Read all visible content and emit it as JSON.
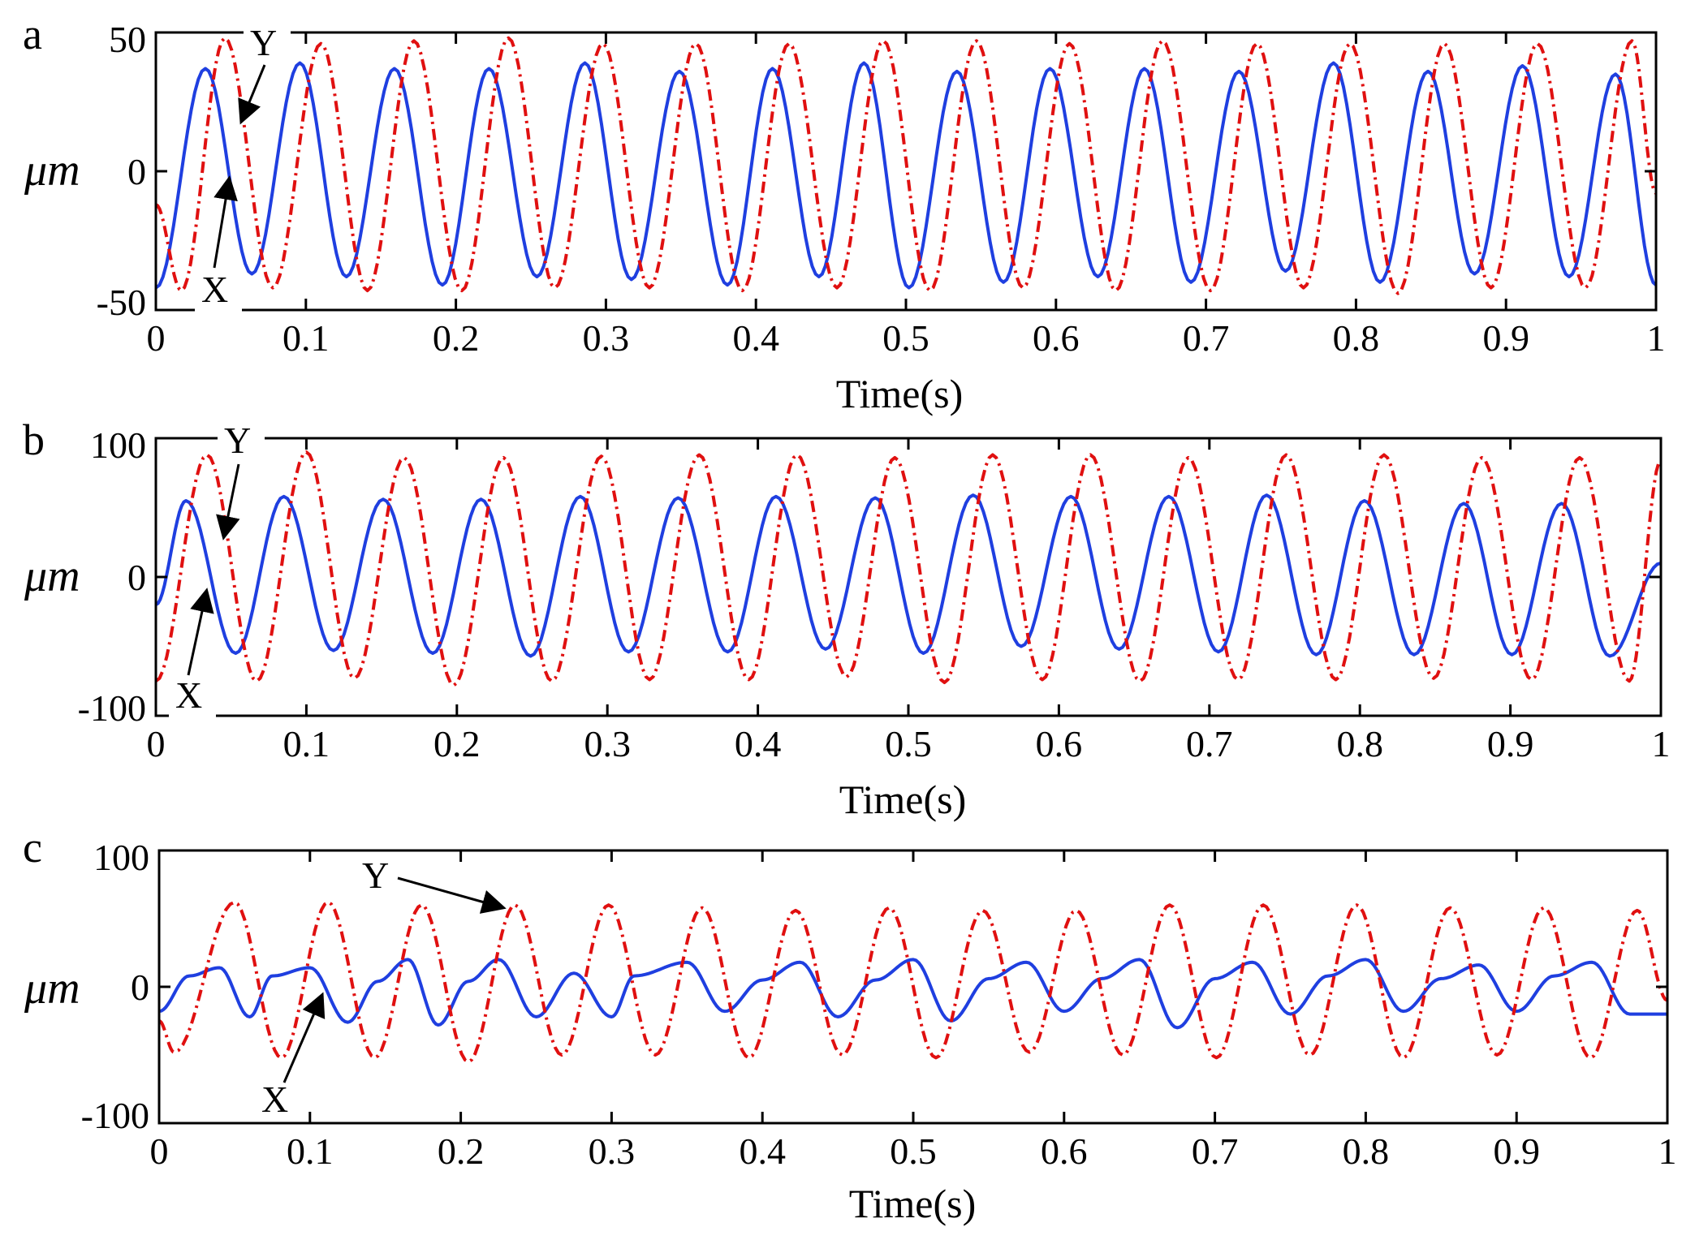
{
  "figure": {
    "panels": [
      "a",
      "b",
      "c"
    ]
  },
  "colors": {
    "x_series": "#1f3fe0",
    "y_series": "#e01010",
    "axes": "#000000"
  },
  "chart_data": [
    {
      "type": "line",
      "panel_label": "a",
      "title": "",
      "xlabel": "Time(s)",
      "ylabel": "μm",
      "xlim": [
        0,
        1
      ],
      "ylim": [
        -50,
        50
      ],
      "xticks": [
        0,
        0.1,
        0.2,
        0.3,
        0.4,
        0.5,
        0.6,
        0.7,
        0.8,
        0.9,
        1
      ],
      "xtick_labels": [
        "0",
        "0.1",
        "0.2",
        "0.3",
        "0.4",
        "0.5",
        "0.6",
        "0.7",
        "0.8",
        "0.9",
        "1"
      ],
      "yticks": [
        -50,
        0,
        50
      ],
      "ytick_labels": [
        "-50",
        "0",
        "50"
      ],
      "grid": false,
      "series": [
        {
          "name": "X",
          "style": "solid",
          "color": "#1f3fe0",
          "x": [
            0,
            0.033,
            0.064,
            0.096,
            0.127,
            0.159,
            0.191,
            0.222,
            0.254,
            0.286,
            0.317,
            0.349,
            0.381,
            0.411,
            0.442,
            0.472,
            0.502,
            0.534,
            0.565,
            0.596,
            0.628,
            0.659,
            0.69,
            0.722,
            0.753,
            0.785,
            0.816,
            0.848,
            0.879,
            0.911,
            0.942,
            0.973,
            1
          ],
          "values": [
            -42,
            37,
            -37,
            39,
            -38,
            37,
            -41,
            37,
            -38,
            39,
            -39,
            36,
            -41,
            37,
            -38,
            39,
            -42,
            36,
            -40,
            37,
            -38,
            37,
            -40,
            36,
            -36,
            39,
            -40,
            36,
            -37,
            38,
            -38,
            35,
            -41
          ]
        },
        {
          "name": "Y",
          "style": "dash-dot",
          "color": "#e01010",
          "x": [
            0,
            0.017,
            0.046,
            0.078,
            0.11,
            0.141,
            0.172,
            0.204,
            0.235,
            0.266,
            0.298,
            0.329,
            0.36,
            0.391,
            0.422,
            0.454,
            0.485,
            0.516,
            0.547,
            0.578,
            0.609,
            0.64,
            0.671,
            0.703,
            0.734,
            0.765,
            0.796,
            0.828,
            0.859,
            0.89,
            0.921,
            0.953,
            0.984,
            1
          ],
          "values": [
            -12,
            -43,
            48,
            -42,
            46,
            -43,
            47,
            -43,
            48,
            -42,
            46,
            -42,
            46,
            -43,
            46,
            -42,
            47,
            -43,
            47,
            -42,
            46,
            -43,
            47,
            -43,
            46,
            -42,
            46,
            -44,
            46,
            -42,
            46,
            -42,
            47,
            -8
          ]
        }
      ],
      "annotations": [
        {
          "text": "Y",
          "points_to": "Y curve near t=0.06"
        },
        {
          "text": "X",
          "points_to": "X curve near t=0.05"
        }
      ]
    },
    {
      "type": "line",
      "panel_label": "b",
      "title": "",
      "xlabel": "Time(s)",
      "ylabel": "μm",
      "xlim": [
        0,
        1
      ],
      "ylim": [
        -100,
        100
      ],
      "xticks": [
        0,
        0.1,
        0.2,
        0.3,
        0.4,
        0.5,
        0.6,
        0.7,
        0.8,
        0.9,
        1
      ],
      "xtick_labels": [
        "0",
        "0.1",
        "0.2",
        "0.3",
        "0.4",
        "0.5",
        "0.6",
        "0.7",
        "0.8",
        "0.9",
        "1"
      ],
      "yticks": [
        -100,
        0,
        100
      ],
      "ytick_labels": [
        "-100",
        "0",
        "100"
      ],
      "grid": false,
      "series": [
        {
          "name": "X",
          "style": "solid",
          "color": "#1f3fe0",
          "x": [
            0,
            0.02,
            0.053,
            0.085,
            0.118,
            0.151,
            0.184,
            0.216,
            0.249,
            0.282,
            0.314,
            0.347,
            0.38,
            0.412,
            0.445,
            0.478,
            0.51,
            0.543,
            0.575,
            0.608,
            0.64,
            0.673,
            0.706,
            0.738,
            0.771,
            0.803,
            0.836,
            0.869,
            0.901,
            0.934,
            0.966,
            1
          ],
          "values": [
            -20,
            55,
            -55,
            58,
            -53,
            56,
            -55,
            56,
            -57,
            58,
            -54,
            57,
            -54,
            58,
            -52,
            57,
            -55,
            59,
            -50,
            58,
            -52,
            58,
            -54,
            59,
            -56,
            55,
            -56,
            53,
            -56,
            53,
            -57,
            10
          ]
        },
        {
          "name": "Y",
          "style": "dash-dot",
          "color": "#e01010",
          "x": [
            0,
            0.034,
            0.067,
            0.1,
            0.132,
            0.165,
            0.198,
            0.231,
            0.263,
            0.296,
            0.328,
            0.361,
            0.394,
            0.426,
            0.459,
            0.491,
            0.524,
            0.556,
            0.589,
            0.621,
            0.654,
            0.686,
            0.719,
            0.751,
            0.784,
            0.816,
            0.849,
            0.881,
            0.914,
            0.946,
            0.979,
            1
          ],
          "values": [
            -75,
            88,
            -75,
            90,
            -73,
            86,
            -78,
            86,
            -75,
            87,
            -74,
            88,
            -74,
            88,
            -72,
            86,
            -76,
            88,
            -74,
            88,
            -75,
            86,
            -74,
            88,
            -74,
            88,
            -73,
            86,
            -74,
            86,
            -75,
            84
          ]
        }
      ],
      "annotations": [
        {
          "text": "Y",
          "points_to": "Y curve near t=0.045"
        },
        {
          "text": "X",
          "points_to": "X curve near t=0.035"
        }
      ]
    },
    {
      "type": "line",
      "panel_label": "c",
      "title": "",
      "xlabel": "Time(s)",
      "ylabel": "μm",
      "xlim": [
        0,
        1
      ],
      "ylim": [
        -100,
        100
      ],
      "xticks": [
        0,
        0.1,
        0.2,
        0.3,
        0.4,
        0.5,
        0.6,
        0.7,
        0.8,
        0.9,
        1
      ],
      "xtick_labels": [
        "0",
        "0.1",
        "0.2",
        "0.3",
        "0.4",
        "0.5",
        "0.6",
        "0.7",
        "0.8",
        "0.9",
        "1"
      ],
      "yticks": [
        -100,
        0,
        100
      ],
      "ytick_labels": [
        "-100",
        "0",
        "100"
      ],
      "grid": false,
      "series": [
        {
          "name": "X",
          "style": "solid",
          "color": "#1f3fe0",
          "x": [
            0,
            0.02,
            0.04,
            0.06,
            0.075,
            0.1,
            0.125,
            0.145,
            0.165,
            0.185,
            0.205,
            0.225,
            0.25,
            0.275,
            0.3,
            0.315,
            0.35,
            0.375,
            0.4,
            0.425,
            0.45,
            0.475,
            0.5,
            0.525,
            0.55,
            0.575,
            0.6,
            0.625,
            0.65,
            0.675,
            0.7,
            0.725,
            0.75,
            0.775,
            0.8,
            0.825,
            0.85,
            0.875,
            0.9,
            0.925,
            0.95,
            0.975,
            1
          ],
          "values": [
            -18,
            8,
            14,
            -22,
            8,
            14,
            -26,
            4,
            20,
            -28,
            4,
            20,
            -22,
            10,
            -22,
            8,
            18,
            -18,
            5,
            18,
            -22,
            5,
            20,
            -25,
            6,
            18,
            -18,
            6,
            20,
            -30,
            6,
            18,
            -20,
            8,
            20,
            -18,
            6,
            16,
            -18,
            8,
            18,
            -20,
            -20
          ]
        },
        {
          "name": "Y",
          "style": "dash-dot",
          "color": "#e01010",
          "x": [
            0,
            0.01,
            0.05,
            0.081,
            0.112,
            0.143,
            0.174,
            0.205,
            0.236,
            0.267,
            0.298,
            0.329,
            0.36,
            0.391,
            0.422,
            0.453,
            0.484,
            0.515,
            0.546,
            0.577,
            0.608,
            0.639,
            0.67,
            0.701,
            0.732,
            0.763,
            0.794,
            0.825,
            0.856,
            0.887,
            0.918,
            0.949,
            0.98,
            1
          ],
          "values": [
            -25,
            -48,
            62,
            -52,
            62,
            -52,
            60,
            -55,
            60,
            -50,
            60,
            -50,
            58,
            -52,
            56,
            -50,
            58,
            -52,
            56,
            -48,
            56,
            -50,
            60,
            -52,
            60,
            -50,
            60,
            -52,
            58,
            -50,
            58,
            -52,
            56,
            -10
          ]
        }
      ],
      "annotations": [
        {
          "text": "Y",
          "points_to": "Y curve near t=0.23"
        },
        {
          "text": "X",
          "points_to": "X curve near t=0.11"
        }
      ]
    }
  ]
}
